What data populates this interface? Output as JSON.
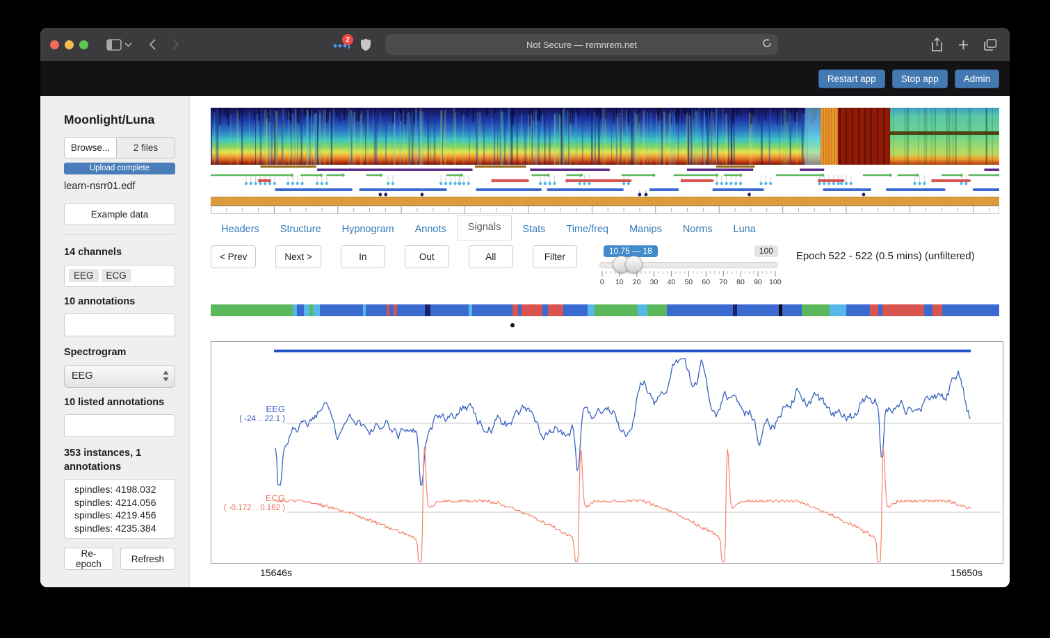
{
  "browser": {
    "url": "Not Secure — remnrem.net",
    "badge": "2"
  },
  "header": {
    "buttons": [
      "Restart app",
      "Stop app",
      "Admin"
    ]
  },
  "sidebar": {
    "title": "Moonlight/Luna",
    "browse_label": "Browse...",
    "files_label": "2 files",
    "upload_status": "Upload complete",
    "filename": "learn-nsrr01.edf",
    "example_button": "Example data",
    "channels_label": "14 channels",
    "channel_tags": [
      "EEG",
      "ECG"
    ],
    "annotations_label": "10 annotations",
    "spectrogram_label": "Spectrogram",
    "spectrogram_select": "EEG",
    "listed_annotations_label": "10 listed annotations",
    "instances_label": "353 instances, 1 annotations",
    "instances": [
      "spindles: 4198.032",
      "spindles: 4214.056",
      "spindles: 4219.456",
      "spindles: 4235.384"
    ],
    "reepoch_button": "Re-epoch",
    "refresh_button": "Refresh"
  },
  "tabs": {
    "items": [
      "Headers",
      "Structure",
      "Hypnogram",
      "Annots",
      "Signals",
      "Stats",
      "Time/freq",
      "Manips",
      "Norms",
      "Luna"
    ],
    "active": "Signals"
  },
  "controls": {
    "prev": "< Prev",
    "next": "Next >",
    "in": "In",
    "out": "Out",
    "all": "All",
    "filter": "Filter",
    "slider": {
      "label": "10.75 — 18",
      "max_label": "100",
      "from": 10.75,
      "to": 18,
      "min": 0,
      "max": 100,
      "ticks": [
        0,
        10,
        20,
        30,
        40,
        50,
        60,
        70,
        80,
        90,
        100
      ]
    },
    "epoch_info": "Epoch 522 - 522 (0.5 mins) (unfiltered)"
  },
  "signals": {
    "eeg": {
      "label": "EEG",
      "range": "( -24 .. 22.1 )",
      "color": "#3a62c0"
    },
    "ecg": {
      "label": "ECG",
      "range": "( -0.172 .. 0.162 )",
      "color": "#f4836c",
      "spikes_x": [
        0.212,
        0.437,
        0.648,
        0.872
      ]
    },
    "x_start_label": "15646s",
    "x_end_label": "15650s",
    "marker_color": "#2255c8",
    "baseline_color": "#c9c9c9"
  },
  "colors": {
    "stage_green": "#5cb85c",
    "stage_cyan": "#56b8e8",
    "stage_blue": "#3a6ad0",
    "stage_navy": "#16246e",
    "stage_red": "#d9534f",
    "stage_black": "#0a0a18",
    "span_brown": "#9a7428",
    "span_purple": "#5c2d8a",
    "orange_band": "#e2a23e"
  },
  "stage_band": {
    "segments": [
      [
        "g",
        118
      ],
      [
        "c",
        6
      ],
      [
        "b",
        10
      ],
      [
        "c",
        8
      ],
      [
        "g",
        5
      ],
      [
        "c",
        10
      ],
      [
        "b",
        62
      ],
      [
        "c",
        4
      ],
      [
        "b",
        30
      ],
      [
        "r",
        4
      ],
      [
        "b",
        6
      ],
      [
        "r",
        5
      ],
      [
        "b",
        40
      ],
      [
        "n",
        8
      ],
      [
        "b",
        55
      ],
      [
        "c",
        5
      ],
      [
        "b",
        58
      ],
      [
        "r",
        8
      ],
      [
        "b",
        5
      ],
      [
        "r",
        30
      ],
      [
        "b",
        8
      ],
      [
        "r",
        22
      ],
      [
        "b",
        35
      ],
      [
        "c",
        10
      ],
      [
        "g",
        62
      ],
      [
        "c",
        8
      ],
      [
        "c",
        6
      ],
      [
        "g",
        28
      ],
      [
        "b",
        95
      ],
      [
        "n",
        6
      ],
      [
        "b",
        60
      ],
      [
        "k",
        5
      ],
      [
        "b",
        28
      ],
      [
        "g",
        40
      ],
      [
        "c",
        24
      ],
      [
        "b",
        34
      ],
      [
        "r",
        12
      ],
      [
        "b",
        6
      ],
      [
        "r",
        60
      ],
      [
        "b",
        12
      ],
      [
        "r",
        14
      ],
      [
        "b",
        82
      ]
    ]
  },
  "annot_spans": {
    "brown": [
      [
        0.063,
        0.134
      ],
      [
        0.335,
        0.4
      ],
      [
        0.641,
        0.69
      ]
    ],
    "purple": [
      [
        0.135,
        0.332
      ],
      [
        0.405,
        0.506
      ],
      [
        0.604,
        0.688
      ],
      [
        0.747,
        0.778
      ],
      [
        0.981,
        1.0
      ]
    ]
  },
  "hypno": {
    "green": [
      [
        0,
        0.103
      ],
      [
        0.115,
        0.14
      ],
      [
        0.148,
        0.168
      ],
      [
        0.198,
        0.216
      ],
      [
        0.3,
        0.318
      ],
      [
        0.408,
        0.428
      ],
      [
        0.452,
        0.47
      ],
      [
        0.522,
        0.562
      ],
      [
        0.588,
        0.642
      ],
      [
        0.652,
        0.672
      ],
      [
        0.718,
        0.776
      ],
      [
        0.828,
        0.862
      ],
      [
        0.872,
        0.896
      ],
      [
        0.928,
        0.952
      ],
      [
        0.962,
        1.0
      ]
    ],
    "blue": [
      [
        0.083,
        0.178
      ],
      [
        0.19,
        0.298
      ],
      [
        0.338,
        0.418
      ],
      [
        0.428,
        0.522
      ],
      [
        0.558,
        0.592
      ],
      [
        0.638,
        0.7
      ],
      [
        0.778,
        0.836
      ],
      [
        0.858,
        0.93
      ],
      [
        0.968,
        1.0
      ]
    ],
    "red": [
      [
        0.062,
        0.075
      ],
      [
        0.358,
        0.402
      ],
      [
        0.452,
        0.532
      ],
      [
        0.598,
        0.636
      ],
      [
        0.772,
        0.802
      ],
      [
        0.916,
        0.962
      ]
    ],
    "cyan_clusters": [
      [
        0.045,
        7
      ],
      [
        0.098,
        4
      ],
      [
        0.135,
        3
      ],
      [
        0.225,
        2
      ],
      [
        0.292,
        5
      ],
      [
        0.315,
        3
      ],
      [
        0.418,
        4
      ],
      [
        0.468,
        3
      ],
      [
        0.524,
        2
      ],
      [
        0.642,
        6
      ],
      [
        0.698,
        3
      ],
      [
        0.772,
        5
      ],
      [
        0.8,
        3
      ],
      [
        0.893,
        3
      ],
      [
        0.952,
        2
      ]
    ],
    "navy": [
      0.215,
      0.222,
      0.268,
      0.544,
      0.552,
      0.683,
      0.828
    ]
  }
}
